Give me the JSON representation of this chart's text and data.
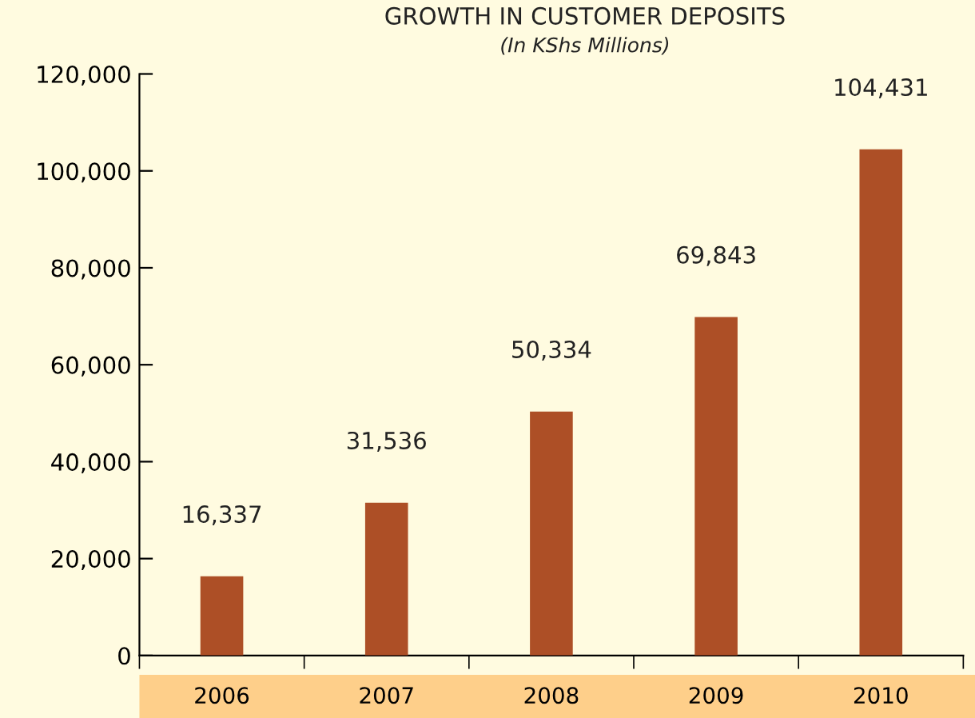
{
  "chart_data": {
    "type": "bar",
    "title": "GROWTH IN CUSTOMER DEPOSITS",
    "subtitle": "(In KShs Millions)",
    "categories": [
      "2006",
      "2007",
      "2008",
      "2009",
      "2010"
    ],
    "values": [
      16337,
      31536,
      50334,
      69843,
      104431
    ],
    "color": "#ad4f26",
    "value_labels": [
      "16,337",
      "31,536",
      "50,334",
      "69,843",
      "104,431"
    ],
    "ylim": [
      0,
      120000
    ],
    "yticks": [
      {
        "value": 0,
        "label": "0"
      },
      {
        "value": 20000,
        "label": "20,000"
      },
      {
        "value": 40000,
        "label": "40,000"
      },
      {
        "value": 60000,
        "label": "60,000"
      },
      {
        "value": 80000,
        "label": "80,000"
      },
      {
        "value": 100000,
        "label": "100,000"
      },
      {
        "value": 120000,
        "label": "120,000"
      }
    ],
    "grid": false,
    "legend": false
  }
}
